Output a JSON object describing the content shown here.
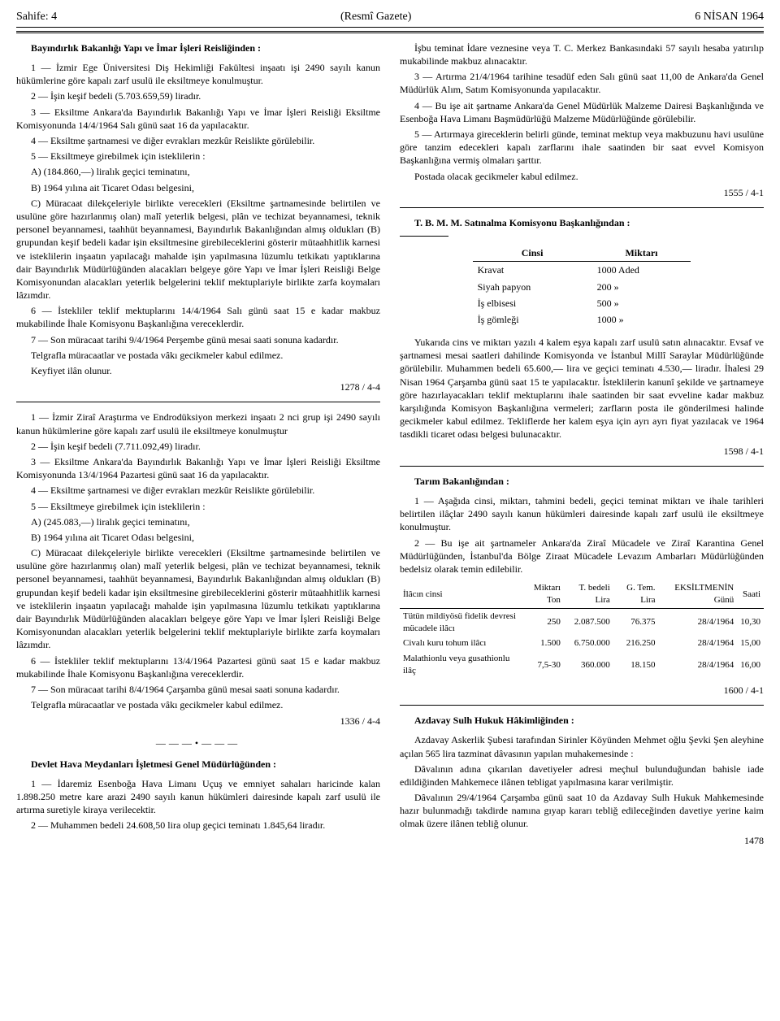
{
  "header": {
    "left": "Sahife: 4",
    "center": "(Resmî Gazete)",
    "right": "6 NİSAN 1964"
  },
  "left": {
    "h1": "Bayındırlık Bakanlığı Yapı ve İmar İşleri Reisliğinden :",
    "a1": "1 — İzmir Ege Üniversitesi Diş Hekimliği Fakültesi inşaatı işi 2490 sayılı kanun hükümlerine göre kapalı zarf usulü ile eksiltmeye konulmuştur.",
    "a2": "2 — İşin keşif bedeli (5.703.659,59) liradır.",
    "a3": "3 — Eksiltme Ankara'da Bayındırlık Bakanlığı Yapı ve İmar İşleri Reisliği Eksiltme Komisyonunda 14/4/1964 Salı günü saat 16 da yapılacaktır.",
    "a4": "4 — Eksiltme şartnamesi ve diğer evrakları mezkûr Reislikte görülebilir.",
    "a5": "5 — Eksiltmeye girebilmek için isteklilerin :",
    "a5a": "A) (184.860,—) liralık geçici teminatını,",
    "a5b": "B) 1964 yılına ait Ticaret Odası belgesini,",
    "a5c": "C) Müracaat dilekçeleriyle birlikte verecekleri (Eksiltme şartnamesinde belirtilen ve usulüne göre hazırlanmış olan) malî yeterlik belgesi, plân ve techizat beyannamesi, teknik personel beyannamesi, taahhüt beyannamesi, Bayındırlık Bakanlığından almış oldukları (B) grupundan keşif bedeli kadar işin eksiltmesine girebileceklerini gösterir mütaahhitlik karnesi ve isteklilerin inşaatın yapılacağı mahalde işin yapılmasına lüzumlu tetkikatı yaptıklarına dair Bayındırlık Müdürlüğünden alacakları belgeye göre Yapı ve İmar İşleri Reisliği Belge Komisyonundan alacakları yeterlik belgelerini teklif mektuplariyle birlikte zarfa koymaları lâzımdır.",
    "a6": "6 — İstekliler teklif mektuplarını 14/4/1964 Salı günü saat 15 e kadar makbuz mukabilinde İhale Komisyonu Başkanlığına vereceklerdir.",
    "a7": "7 — Son müracaat tarihi 9/4/1964 Perşembe günü mesai saati sonuna kadardır.",
    "a8": "Telgrafla müracaatlar ve postada vâkı gecikmeler kabul edilmez.",
    "a9": "Keyfiyet ilân olunur.",
    "aref": "1278 / 4-4",
    "b1": "1 — İzmir Ziraî Araştırma ve Endrodüksiyon merkezi inşaatı 2 nci grup işi 2490 sayılı kanun hükümlerine göre kapalı zarf usulü ile eksiltmeye konulmuştur",
    "b2": "2 — İşin keşif bedeli (7.711.092,49) liradır.",
    "b3": "3 — Eksiltme Ankara'da Bayındırlık Bakanlığı Yapı ve İmar İşleri Reisliği Eksiltme Komisyonunda 13/4/1964 Pazartesi günü saat 16 da yapılacaktır.",
    "b4": "4 — Eksiltme şartnamesi ve diğer evrakları mezkûr Reislikte görülebilir.",
    "b5": "5 — Eksiltmeye girebilmek için isteklilerin :",
    "b5a": "A) (245.083,—) liralık geçici teminatını,",
    "b5b": "B) 1964 yılına ait Ticaret Odası belgesini,",
    "b5c": "C) Müracaat dilekçeleriyle birlikte verecekleri (Eksiltme şartnamesinde belirtilen ve usulüne göre hazırlanmış olan) malî yeterlik belgesi, plân ve techizat beyannamesi, teknik personel beyannamesi, taahhüt beyannamesi, Bayındırlık Bakanlığından almış oldukları (B) grupundan keşif bedeli kadar işin eksiltmesine girebileceklerini gösterir mütaahhitlik karnesi ve isteklilerin inşaatın yapılacağı mahalde işin yapılmasına lüzumlu tetkikatı yaptıklarına dair Bayındırlık Müdürlüğünden alacakları belgeye göre Yapı ve İmar İşleri Reisliği Belge Komisyonundan alacakları yeterlik belgelerini teklif mektuplariyle birlikte zarfa koymaları lâzımdır.",
    "b6": "6 — İstekliler teklif mektuplarını 13/4/1964 Pazartesi günü saat 15 e kadar makbuz mukabilinde İhale Komisyonu Başkanlığına vereceklerdir.",
    "b7": "7 — Son müracaat tarihi 8/4/1964 Çarşamba günü mesai saati sonuna kadardır.",
    "b8": "Telgrafla müracaatlar ve postada vâkı gecikmeler kabul edilmez.",
    "bref": "1336 / 4-4",
    "h2": "Devlet Hava Meydanları İşletmesi Genel Müdürlüğünden :",
    "c1": "1 — İdaremiz Esenboğa Hava Limanı Uçuş ve emniyet sahaları haricinde kalan 1.898.250 metre kare arazi 2490 sayılı kanun hükümleri dairesinde kapalı zarf usulü ile artırma suretiyle kiraya verilecektir.",
    "c2": "2 — Muhammen bedeli 24.608,50 lira olup geçici teminatı 1.845,64 liradır."
  },
  "right": {
    "d1": "İşbu teminat İdare veznesine veya T. C. Merkez Bankasındaki 57 sayılı hesaba yatırılıp mukabilinde makbuz alınacaktır.",
    "d2": "3 — Artırma 21/4/1964 tarihine tesadüf eden Salı günü saat 11,00 de Ankara'da Genel Müdürlük Alım, Satım Komisyonunda yapılacaktır.",
    "d3": "4 — Bu işe ait şartname Ankara'da Genel Müdürlük Malzeme Dairesi Başkanlığında ve Esenboğa Hava Limanı Başmüdürlüğü Malzeme Müdürlüğünde görülebilir.",
    "d4": "5 — Artırmaya gireceklerin belirli günde, teminat mektup veya makbuzunu havi usulüne göre tanzim edecekleri kapalı zarflarını ihale saatinden bir saat evvel Komisyon Başkanlığına vermiş olmaları şarttır.",
    "d5": "Postada olacak gecikmeler kabul edilmez.",
    "dref": "1555 / 4-1",
    "h3": "T. B. M. M. Satınalma Komisyonu Başkanlığından :",
    "table1": {
      "head": [
        "Cinsi",
        "Miktarı"
      ],
      "rows": [
        [
          "Kravat",
          "1000 Aded"
        ],
        [
          "Siyah papyon",
          "200   »"
        ],
        [
          "İş elbisesi",
          "500   »"
        ],
        [
          "İş gömleği",
          "1000   »"
        ]
      ]
    },
    "e1": "Yukarıda cins ve miktarı yazılı 4 kalem eşya kapalı zarf usulü satın alınacaktır. Evsaf ve şartnamesi mesai saatleri dahilinde Komisyonda ve İstanbul Millî Saraylar Müdürlüğünde görülebilir. Muhammen bedeli 65.600,— lira ve geçici teminatı 4.530,— liradır. İhalesi 29 Nisan 1964 Çarşamba günü saat 15 te yapılacaktır. İsteklilerin kanunî şekilde ve şartnameye göre hazırlayacakları teklif mektuplarını ihale saatinden bir saat evveline kadar makbuz karşılığında Komisyon Başkanlığına vermeleri; zarfların posta ile gönderilmesi halinde gecikmeler kabul edilmez. Tekliflerde her kalem eşya için ayrı ayrı fiyat yazılacak ve 1964 tasdikli ticaret odası belgesi bulunacaktır.",
    "eref": "1598 / 4-1",
    "h4": "Tarım Bakanlığından :",
    "f1": "1 — Aşağıda cinsi, miktarı, tahmini bedeli, geçici teminat miktarı ve ihale tarihleri belirtilen ilâçlar 2490 sayılı kanun hükümleri dairesinde kapalı zarf usulü ile eksiltmeye konulmuştur.",
    "f2": "2 — Bu işe ait şartnameler Ankara'da Ziraî Mücadele ve Ziraî Karantina Genel Müdürlüğünden, İstanbul'da Bölge Ziraat Mücadele Levazım Ambarları Müdürlüğünden bedelsiz olarak temin edilebilir.",
    "table2": {
      "head": [
        "İlâcın cinsi",
        "Miktarı Ton",
        "T. bedeli Lira",
        "G. Tem. Lira",
        "EKSİLTMENİN Günü",
        "Saati"
      ],
      "rows": [
        [
          "Tütün mildiyösü fidelik devresi mücadele ilâcı",
          "250",
          "2.087.500",
          "76.375",
          "28/4/1964",
          "10,30"
        ],
        [
          "Civalı kuru tohum ilâcı",
          "1.500",
          "6.750.000",
          "216.250",
          "28/4/1964",
          "15,00"
        ],
        [
          "Malathionlu veya gusathionlu ilâç",
          "7,5-30",
          "360.000",
          "18.150",
          "28/4/1964",
          "16,00"
        ]
      ]
    },
    "fref": "1600 / 4-1",
    "h5": "Azdavay Sulh Hukuk Hâkimliğinden :",
    "g1": "Azdavay Askerlik Şubesi tarafından Sirinler Köyünden Mehmet oğlu Şevki Şen aleyhine açılan 565 lira tazminat dâvasının yapılan muhakemesinde :",
    "g2": "Dâvalının adına çıkarılan davetiyeler adresi meçhul bulunduğundan bahisle iade edildiğinden Mahkemece ilânen tebligat yapılmasına karar verilmiştir.",
    "g3": "Dâvalının 29/4/1964 Çarşamba günü saat 10 da Azdavay Sulh Hukuk Mahkemesinde hazır bulunmadığı takdirde namına gıyap kararı tebliğ edileceğinden davetiye yerine kaim olmak üzere ilânen tebliğ olunur.",
    "gref": "1478"
  }
}
